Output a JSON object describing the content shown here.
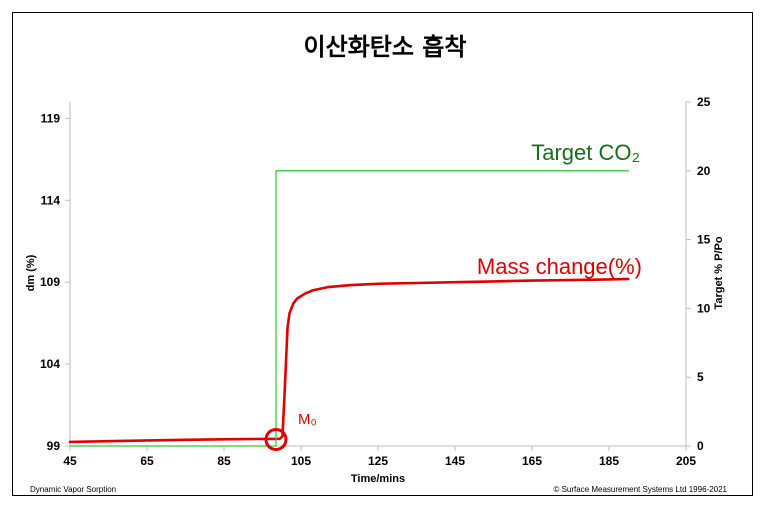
{
  "chart_data": {
    "type": "line",
    "title": "이산화탄소 흡착",
    "xlabel": "Time/mins",
    "ylabel": "dm (%)",
    "y2label": "Target % P/Po",
    "xlim": [
      45,
      205
    ],
    "ylim": [
      99,
      120
    ],
    "y2lim": [
      0,
      25
    ],
    "xticks": [
      45,
      65,
      85,
      105,
      125,
      145,
      165,
      185,
      205
    ],
    "yticks": [
      99,
      104,
      109,
      114,
      119
    ],
    "y2ticks": [
      0,
      5,
      10,
      15,
      20,
      25
    ],
    "series": [
      {
        "name": "Mass change(%)",
        "axis": "left",
        "color": "#e00000",
        "x": [
          45,
          60,
          75,
          90,
          99.5,
          100.2,
          100.8,
          101.5,
          102,
          103,
          104,
          106,
          108,
          112,
          118,
          125,
          135,
          145,
          155,
          165,
          175,
          185,
          190
        ],
        "y": [
          99.25,
          99.32,
          99.38,
          99.42,
          99.44,
          99.6,
          102.5,
          106.2,
          107.1,
          107.7,
          108.0,
          108.3,
          108.5,
          108.7,
          108.82,
          108.9,
          108.95,
          109.0,
          109.05,
          109.1,
          109.13,
          109.17,
          109.2
        ]
      },
      {
        "name": "Target CO₂",
        "axis": "right",
        "color": "#33cc33",
        "x": [
          45,
          98.5,
          98.5,
          190
        ],
        "y": [
          0,
          0,
          20,
          20
        ]
      }
    ],
    "annotations": {
      "mass_label": "Mass change(%)",
      "target_label": "Target CO₂",
      "m0_label": "M₀",
      "m0_point": [
        98.5,
        99.4
      ]
    },
    "footer_left": "Dynamic Vapor Sorption",
    "footer_right": "© Surface Measurement Systems Ltd 1996-2021"
  }
}
